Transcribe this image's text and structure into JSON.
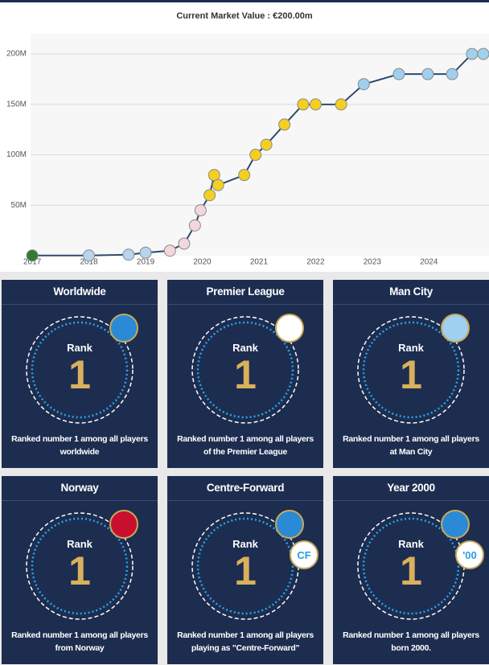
{
  "chart_data": {
    "type": "line",
    "title": "Current Market Value : €200.00m",
    "x": [
      2017.0,
      2018.0,
      2018.7,
      2019.0,
      2019.43,
      2019.68,
      2019.87,
      2019.97,
      2020.13,
      2020.21,
      2020.28,
      2020.74,
      2020.94,
      2021.13,
      2021.45,
      2021.78,
      2022.0,
      2022.45,
      2022.85,
      2023.47,
      2023.98,
      2024.41,
      2024.76,
      2024.96
    ],
    "values": [
      0.2,
      0.2,
      1,
      3,
      5,
      12,
      30,
      45,
      60,
      80,
      70,
      80,
      100,
      110,
      130,
      150,
      150,
      150,
      170,
      180,
      180,
      180,
      200,
      200
    ],
    "color": "#2d4b6e",
    "marker_colors": [
      "#2e7d32",
      "#b9d4ef",
      "#b9d4ef",
      "#b9d4ef",
      "#f2d7dc",
      "#f2d7dc",
      "#f2d7dc",
      "#f2d7dc",
      "#f5cf1f",
      "#f5cf1f",
      "#f5cf1f",
      "#f5cf1f",
      "#f5cf1f",
      "#f5cf1f",
      "#f5cf1f",
      "#f5cf1f",
      "#f5cf1f",
      "#f5cf1f",
      "#9fd0ef",
      "#9fd0ef",
      "#9fd0ef",
      "#9fd0ef",
      "#9fd0ef",
      "#9fd0ef"
    ],
    "xlim": [
      2016.97,
      2025.06
    ],
    "ylim": [
      0,
      220
    ],
    "xticks": [
      2017,
      2018,
      2019,
      2020,
      2021,
      2022,
      2023,
      2024
    ],
    "yticks": [
      {
        "value": 50,
        "label": "50M"
      },
      {
        "value": 100,
        "label": "100M"
      },
      {
        "value": 150,
        "label": "150M"
      },
      {
        "value": 200,
        "label": "200M"
      }
    ],
    "grid": true
  },
  "cards": [
    {
      "title": "Worldwide",
      "rank_label": "Rank",
      "rank": 1,
      "description": "Ranked number 1 among all players worldwide",
      "badge_color": "#2a8ad6"
    },
    {
      "title": "Premier League",
      "rank_label": "Rank",
      "rank": 1,
      "description": "Ranked number 1 among all players of the Premier League",
      "badge_color": "#ffffff"
    },
    {
      "title": "Man City",
      "rank_label": "Rank",
      "rank": 1,
      "description": "Ranked number 1 among all players at Man City",
      "badge_color": "#9fd0ef"
    },
    {
      "title": "Norway",
      "rank_label": "Rank",
      "rank": 1,
      "description": "Ranked number 1 among all players from Norway",
      "badge_color": "#c8102e"
    },
    {
      "title": "Centre-Forward",
      "rank_label": "Rank",
      "rank": 1,
      "description": "Ranked number 1 among all players playing as \"Centre-Forward\"",
      "badge_color": "#2a8ad6",
      "tag": "CF"
    },
    {
      "title": "Year 2000",
      "rank_label": "Rank",
      "rank": 1,
      "description": "Ranked number 1 among all players born 2000.",
      "badge_color": "#2a8ad6",
      "tag": "'00"
    }
  ]
}
